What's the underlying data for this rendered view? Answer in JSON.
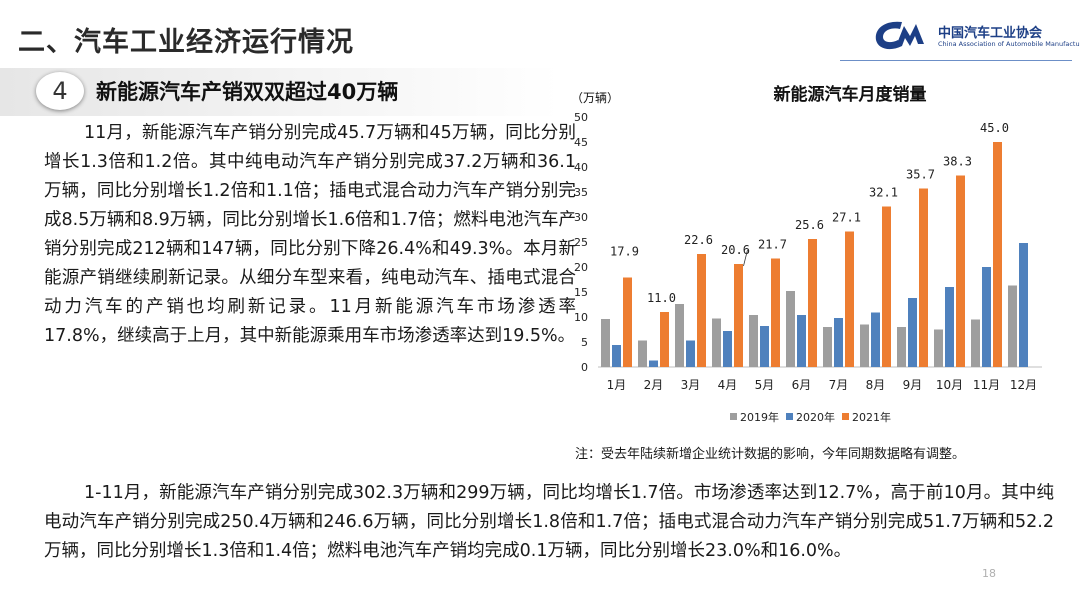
{
  "header": {
    "page_title": "二、汽车工业经济运行情况",
    "logo_name": "中国汽车工业协会",
    "logo_en": "China Association of Automobile Manufacturers"
  },
  "section": {
    "number": "4",
    "title": "新能源汽车产销双双超过40万辆"
  },
  "body": {
    "paragraph1": "11月，新能源汽车产销分别完成45.7万辆和45万辆，同比分别增长1.3倍和1.2倍。其中纯电动汽车产销分别完成37.2万辆和36.1万辆，同比分别增长1.2倍和1.1倍；插电式混合动力汽车产销分别完成8.5万辆和8.9万辆，同比分别增长1.6倍和1.7倍；燃料电池汽车产销分别完成212辆和147辆，同比分别下降26.4%和49.3%。本月新能源产销继续刷新记录。从细分车型来看，纯电动汽车、插电式混合动力汽车的产销也均刷新记录。11月新能源汽车市场渗透率17.8%，继续高于上月，其中新能源乘用车市场渗透率达到19.5%。",
    "paragraph2": "1-11月，新能源汽车产销分别完成302.3万辆和299万辆，同比均增长1.7倍。市场渗透率达到12.7%，高于前10月。其中纯电动汽车产销分别完成250.4万辆和246.6万辆，同比分别增长1.8倍和1.7倍；插电式混合动力汽车产销分别完成51.7万辆和52.2万辆，同比分别增长1.3倍和1.4倍；燃料电池汽车产销均完成0.1万辆，同比分别增长23.0%和16.0%。"
  },
  "chart_note": "注：受去年陆续新增企业统计数据的影响，今年同期数据略有调整。",
  "page_number": "18",
  "colors": {
    "series_2019": "#9e9e9e",
    "series_2020": "#4f81bd",
    "series_2021": "#ed7d31",
    "brand_blue": "#1d3f86"
  },
  "chart_data": {
    "type": "bar",
    "title": "新能源汽车月度销量",
    "unit_label": "（万辆）",
    "categories": [
      "1月",
      "2月",
      "3月",
      "4月",
      "5月",
      "6月",
      "7月",
      "8月",
      "9月",
      "10月",
      "11月",
      "12月"
    ],
    "series": [
      {
        "name": "2019年",
        "values": [
          9.6,
          5.3,
          12.6,
          9.7,
          10.4,
          15.2,
          8.0,
          8.5,
          8.0,
          7.5,
          9.5,
          16.3
        ],
        "color": "#9e9e9e"
      },
      {
        "name": "2020年",
        "values": [
          4.4,
          1.3,
          5.3,
          7.2,
          8.2,
          10.4,
          9.8,
          10.9,
          13.8,
          16.0,
          20.0,
          24.8
        ],
        "color": "#4f81bd"
      },
      {
        "name": "2021年",
        "values": [
          17.9,
          11.0,
          22.6,
          20.6,
          21.7,
          25.6,
          27.1,
          32.1,
          35.7,
          38.3,
          45.0,
          null
        ],
        "color": "#ed7d31"
      }
    ],
    "data_labels_series": "2021年",
    "data_labels": [
      "17.9",
      "11.0",
      "22.6",
      "20.6",
      "21.7",
      "25.6",
      "27.1",
      "32.1",
      "35.7",
      "38.3",
      "45.0"
    ],
    "y_ticks": [
      0,
      5,
      10,
      15,
      20,
      25,
      30,
      35,
      40,
      45,
      50
    ],
    "ylim": [
      0,
      50
    ],
    "grid": false,
    "legend_position": "bottom"
  }
}
